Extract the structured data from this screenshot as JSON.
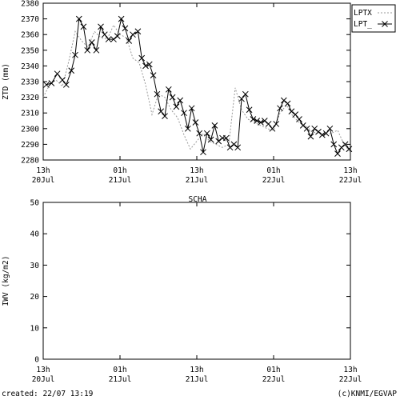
{
  "footer": {
    "created": "created: 22/07 13:19",
    "credit": "(c)KNMI/EGVAP"
  },
  "chart_data": [
    {
      "type": "line",
      "title": "",
      "xlabel": "",
      "ylabel": "ZTD (mm)",
      "xlim": [
        0,
        48
      ],
      "ylim": [
        2280,
        2380
      ],
      "yticks": [
        2280,
        2290,
        2300,
        2310,
        2320,
        2330,
        2340,
        2350,
        2360,
        2370,
        2380
      ],
      "xtick_labels": [
        {
          "time": "13h",
          "date": "20Jul"
        },
        {
          "time": "01h",
          "date": "21Jul"
        },
        {
          "time": "13h",
          "date": "21Jul"
        },
        {
          "time": "01h",
          "date": "22Jul"
        },
        {
          "time": "13h",
          "date": "22Jul"
        }
      ],
      "grid": false,
      "legend_position": "outside-right",
      "series": [
        {
          "name": "LPTX",
          "style": "dotted",
          "color": "#999999",
          "x": [
            0,
            1,
            2,
            3,
            4,
            5,
            6,
            7,
            8,
            9,
            10,
            11,
            12,
            13,
            14,
            15,
            16,
            17,
            18,
            19,
            20,
            21,
            22,
            23,
            24,
            25,
            26,
            27,
            28,
            29,
            30,
            31,
            32,
            33,
            34,
            35,
            36,
            37,
            38,
            39,
            40,
            41,
            42,
            43,
            44,
            45,
            46,
            47,
            48
          ],
          "y": [
            2320,
            2328,
            2331,
            2327,
            2343,
            2362,
            2356,
            2352,
            2362,
            2358,
            2357,
            2366,
            2360,
            2358,
            2345,
            2342,
            2328,
            2309,
            2322,
            2320,
            2312,
            2307,
            2296,
            2287,
            2292,
            2297,
            2292,
            2290,
            2288,
            2290,
            2326,
            2312,
            2306,
            2304,
            2302,
            2300,
            2299,
            2310,
            2315,
            2308,
            2304,
            2302,
            2298,
            2297,
            2296,
            2297,
            2299,
            2290,
            2285
          ]
        },
        {
          "name": "LPT_",
          "style": "solid-with-x-markers",
          "color": "#000000",
          "x": [
            0.5,
            1.3,
            2.2,
            3.0,
            3.6,
            4.4,
            5.0,
            5.6,
            6.3,
            6.9,
            7.6,
            8.3,
            9.0,
            9.6,
            10.2,
            11.0,
            11.6,
            12.2,
            12.8,
            13.4,
            14.0,
            14.8,
            15.4,
            16.0,
            16.6,
            17.2,
            17.8,
            18.4,
            19.0,
            19.6,
            20.2,
            20.8,
            21.4,
            22.0,
            22.6,
            23.2,
            23.8,
            24.4,
            25.0,
            25.6,
            26.2,
            26.8,
            27.4,
            28.0,
            28.6,
            29.2,
            29.8,
            30.4,
            31.0,
            31.6,
            32.2,
            32.8,
            33.4,
            34.0,
            34.6,
            35.2,
            35.8,
            36.4,
            37.0,
            37.6,
            38.2,
            38.8,
            39.4,
            40.0,
            40.6,
            41.2,
            41.8,
            42.4,
            43.0,
            43.6,
            44.2,
            44.8,
            45.4,
            46.0,
            46.6,
            47.2,
            47.8
          ],
          "y": [
            2328,
            2329,
            2335,
            2331,
            2328,
            2337,
            2347,
            2370,
            2365,
            2350,
            2355,
            2350,
            2365,
            2360,
            2357,
            2357,
            2359,
            2370,
            2364,
            2356,
            2360,
            2362,
            2345,
            2340,
            2341,
            2334,
            2322,
            2311,
            2308,
            2325,
            2320,
            2314,
            2318,
            2310,
            2300,
            2313,
            2304,
            2297,
            2285,
            2297,
            2293,
            2302,
            2292,
            2294,
            2294,
            2288,
            2290,
            2288,
            2319,
            2322,
            2312,
            2306,
            2305,
            2304,
            2305,
            2303,
            2300,
            2303,
            2313,
            2318,
            2316,
            2311,
            2309,
            2306,
            2302,
            2300,
            2295,
            2300,
            2298,
            2296,
            2297,
            2300,
            2290,
            2284,
            2288,
            2290,
            2287
          ]
        }
      ]
    },
    {
      "type": "line",
      "title": "SCHA",
      "xlabel": "",
      "ylabel": "IWV (kg/m2)",
      "xlim": [
        0,
        48
      ],
      "ylim": [
        0,
        50
      ],
      "yticks": [
        0,
        10,
        20,
        30,
        40,
        50
      ],
      "xtick_labels": [
        {
          "time": "13h",
          "date": "20Jul"
        },
        {
          "time": "01h",
          "date": "21Jul"
        },
        {
          "time": "13h",
          "date": "21Jul"
        },
        {
          "time": "01h",
          "date": "22Jul"
        },
        {
          "time": "13h",
          "date": "22Jul"
        }
      ],
      "grid": false,
      "series": []
    }
  ]
}
